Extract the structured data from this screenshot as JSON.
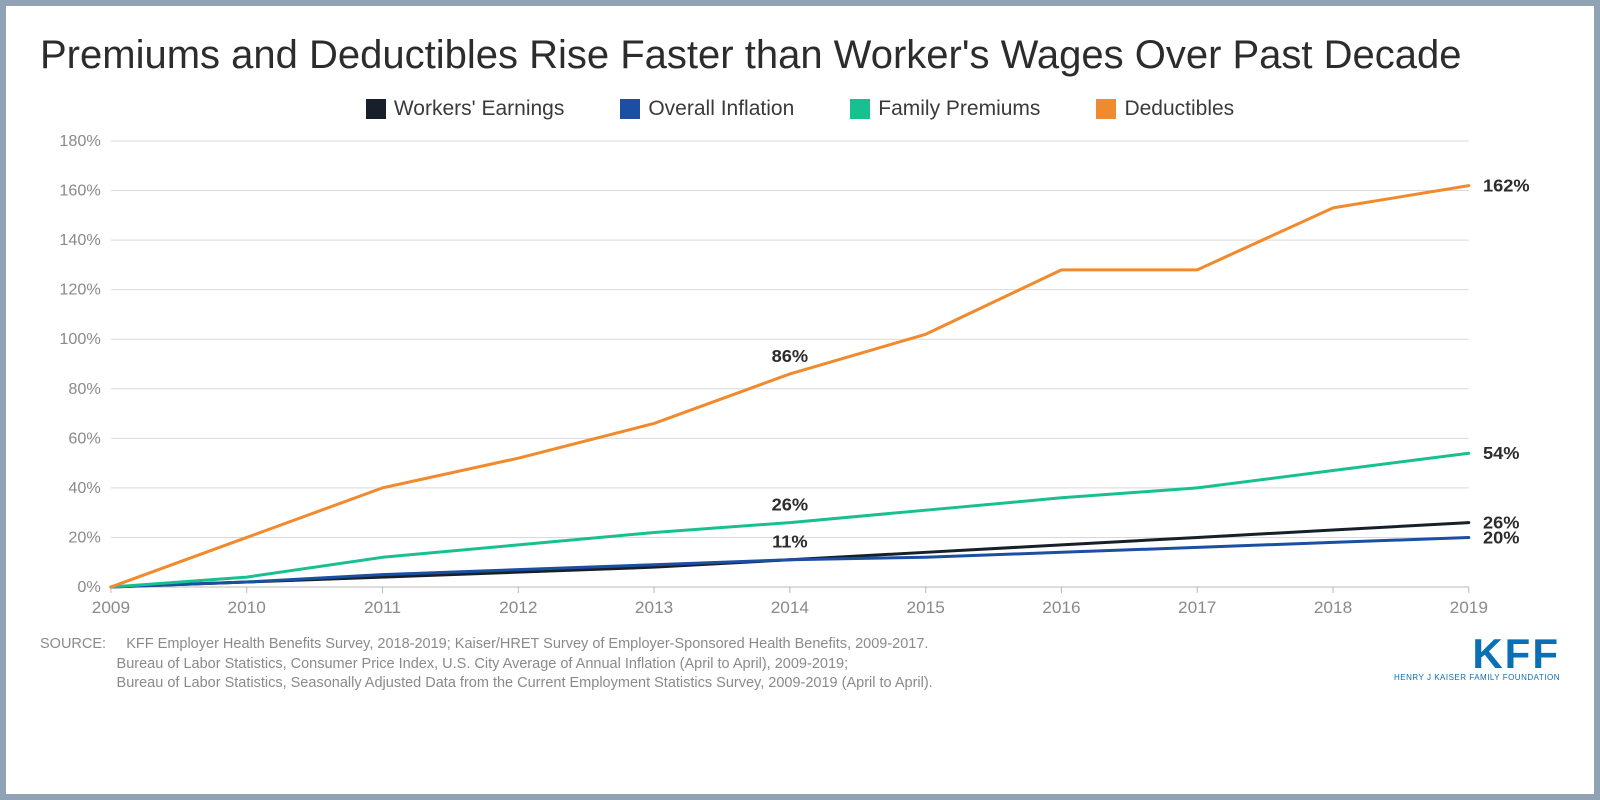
{
  "title": "Premiums and Deductibles Rise Faster than Worker's Wages Over Past Decade",
  "chart": {
    "type": "line",
    "background_color": "#ffffff",
    "grid_color": "#d9d9d9",
    "axis_label_color": "#8a8a8a",
    "point_label_color": "#2c2c2c",
    "point_label_fontsize": 18,
    "title_fontsize": 40,
    "years": [
      "2009",
      "2010",
      "2011",
      "2012",
      "2013",
      "2014",
      "2015",
      "2016",
      "2017",
      "2018",
      "2019"
    ],
    "ylim": [
      0,
      180
    ],
    "ytick_step": 20,
    "ytick_suffix": "%",
    "line_width": 3,
    "series": [
      {
        "name": "Workers' Earnings",
        "color": "#17202a",
        "values": [
          0,
          2,
          4,
          6,
          8,
          11,
          14,
          17,
          20,
          23,
          26
        ]
      },
      {
        "name": "Overall Inflation",
        "color": "#1a4fa3",
        "values": [
          0,
          2,
          5,
          7,
          9,
          11,
          12,
          14,
          16,
          18,
          20
        ]
      },
      {
        "name": "Family Premiums",
        "color": "#19c08f",
        "values": [
          0,
          4,
          12,
          17,
          22,
          26,
          31,
          36,
          40,
          47,
          54
        ]
      },
      {
        "name": "Deductibles",
        "color": "#f08a2d",
        "values": [
          0,
          20,
          40,
          52,
          66,
          86,
          102,
          128,
          128,
          153,
          162
        ]
      }
    ],
    "midpoint_labels": [
      {
        "series": "Deductibles",
        "year": "2014",
        "text": "86%"
      },
      {
        "series": "Family Premiums",
        "year": "2014",
        "text": "26%"
      },
      {
        "series": "Workers' Earnings",
        "year": "2014",
        "text": "11%"
      }
    ],
    "end_labels": [
      {
        "series": "Deductibles",
        "text": "162%"
      },
      {
        "series": "Family Premiums",
        "text": "54%"
      },
      {
        "series": "Workers' Earnings",
        "text": "26%"
      },
      {
        "series": "Overall Inflation",
        "text": "20%"
      }
    ]
  },
  "source": {
    "label": "SOURCE:",
    "line1": "KFF Employer Health Benefits Survey, 2018-2019; Kaiser/HRET Survey of Employer-Sponsored Health Benefits, 2009-2017.",
    "line2": "Bureau of Labor Statistics, Consumer Price Index, U.S. City Average of Annual Inflation (April to April), 2009-2019;",
    "line3": "Bureau of Labor Statistics, Seasonally Adjusted Data from the Current Employment Statistics Survey, 2009-2019 (April to April)."
  },
  "logo": {
    "text": "KFF",
    "sub": "HENRY J KAISER FAMILY FOUNDATION",
    "color": "#0a6fb4"
  }
}
